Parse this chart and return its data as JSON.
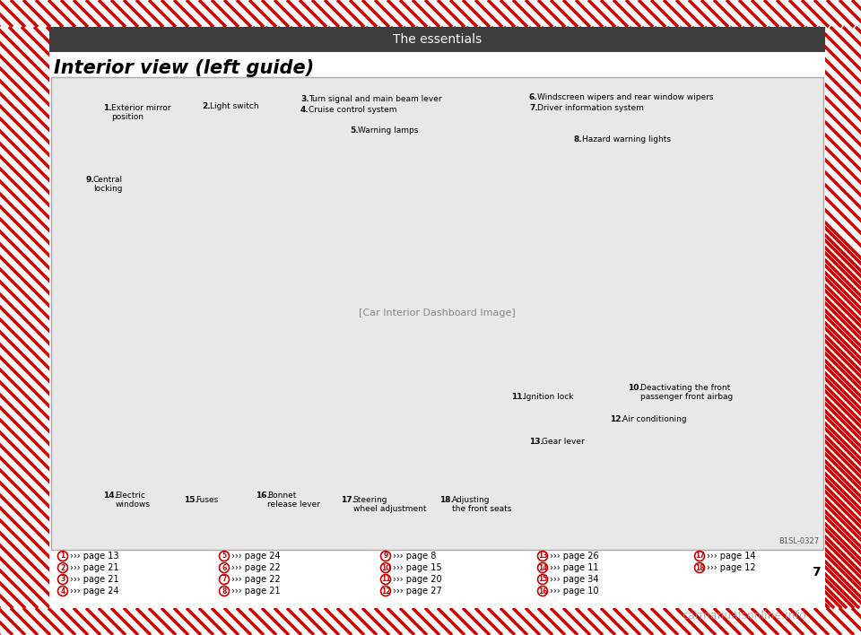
{
  "title": "The essentials",
  "section_title": "Interior view (left guide)",
  "page_number": "7",
  "background_color": "#ffffff",
  "header_bg_color": "#3d3d3d",
  "header_text_color": "#ffffff",
  "border_color": "#cc0000",
  "section_title_color": "#000000",
  "image_border_color": "#cccccc",
  "ref_items": [
    {
      "num": "1",
      "page": "13",
      "col": 0
    },
    {
      "num": "2",
      "page": "21",
      "col": 0
    },
    {
      "num": "3",
      "page": "21",
      "col": 0
    },
    {
      "num": "4",
      "page": "24",
      "col": 0
    },
    {
      "num": "5",
      "page": "24",
      "col": 1
    },
    {
      "num": "6",
      "page": "22",
      "col": 1
    },
    {
      "num": "7",
      "page": "22",
      "col": 1
    },
    {
      "num": "8",
      "page": "21",
      "col": 1
    },
    {
      "num": "9",
      "page": "8",
      "col": 2
    },
    {
      "num": "10",
      "page": "15",
      "col": 2
    },
    {
      "num": "11",
      "page": "20",
      "col": 2
    },
    {
      "num": "12",
      "page": "27",
      "col": 2
    },
    {
      "num": "13",
      "page": "26",
      "col": 3
    },
    {
      "num": "14",
      "page": "11",
      "col": 3
    },
    {
      "num": "15",
      "page": "34",
      "col": 3
    },
    {
      "num": "16",
      "page": "10",
      "col": 3
    },
    {
      "num": "17",
      "page": "14",
      "col": 4
    },
    {
      "num": "18",
      "page": "12",
      "col": 4
    }
  ],
  "watermark_text": "carmanualsonline.info",
  "diagonal_stripe_color": "#cc0000",
  "diagonal_stripe_bg": "#ffffff"
}
